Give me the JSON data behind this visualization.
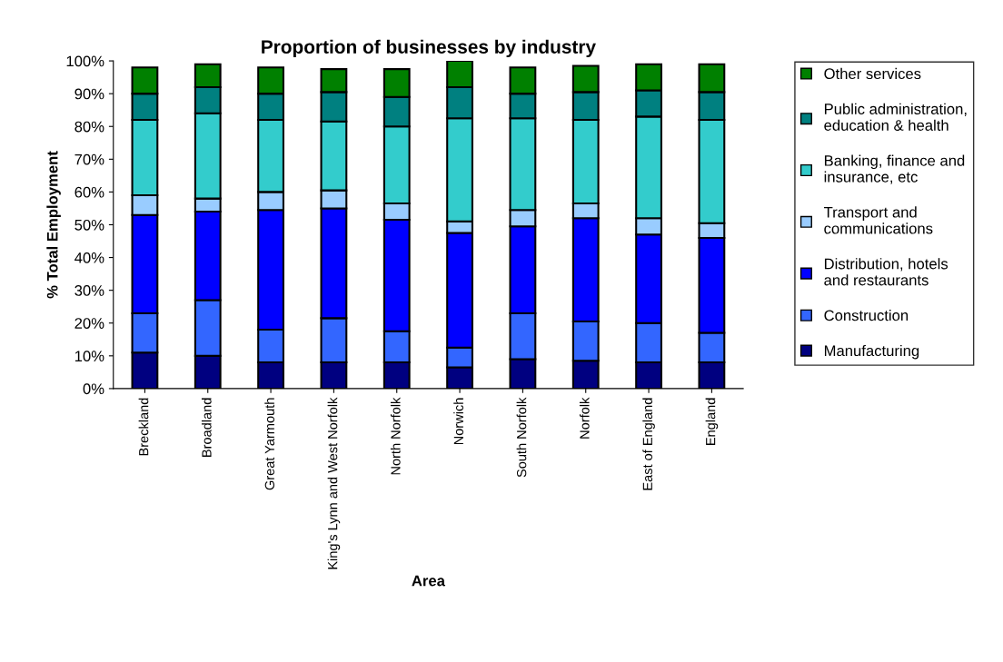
{
  "chart_data": {
    "type": "bar",
    "title": "Proportion of businesses by industry",
    "xlabel": "Area",
    "ylabel": "% Total Employment",
    "categories": [
      "Breckland",
      "Broadland",
      "Great Yarmouth",
      "King's Lynn and West Norfolk",
      "North Norfolk",
      "Norwich",
      "South Norfolk",
      "Norfolk",
      "East of England",
      "England"
    ],
    "stacked": true,
    "ylim": [
      0,
      100
    ],
    "yticks": [
      {
        "value": 0,
        "label": "0%"
      },
      {
        "value": 10,
        "label": "10%"
      },
      {
        "value": 20,
        "label": "20%"
      },
      {
        "value": 30,
        "label": "30%"
      },
      {
        "value": 40,
        "label": "40%"
      },
      {
        "value": 50,
        "label": "50%"
      },
      {
        "value": 60,
        "label": "60%"
      },
      {
        "value": 70,
        "label": "70%"
      },
      {
        "value": 80,
        "label": "80%"
      },
      {
        "value": 90,
        "label": "90%"
      },
      {
        "value": 100,
        "label": "100%"
      }
    ],
    "grid": false,
    "legend": "right",
    "series": [
      {
        "name": "Manufacturing",
        "color": "#000080",
        "values": [
          11,
          10,
          8,
          8,
          8,
          6.5,
          9,
          8.5,
          8,
          8
        ]
      },
      {
        "name": "Construction",
        "color": "#3366ff",
        "values": [
          12,
          17,
          10,
          13.5,
          9.5,
          6,
          14,
          12,
          12,
          9
        ]
      },
      {
        "name": "Distribution, hotels and restaurants",
        "color": "#0000ff",
        "values": [
          30,
          27,
          36.5,
          33.5,
          34,
          35,
          26.5,
          31.5,
          27,
          29
        ]
      },
      {
        "name": "Transport and communications",
        "color": "#99ccff",
        "values": [
          6,
          4,
          5.5,
          5.5,
          5,
          3.5,
          5,
          4.5,
          5,
          4.5
        ]
      },
      {
        "name": "Banking, finance and insurance, etc",
        "color": "#33cccc",
        "values": [
          23,
          26,
          22,
          21,
          23.5,
          31.5,
          28,
          25.5,
          31,
          31.5
        ]
      },
      {
        "name": "Public administration, education & health",
        "color": "#008080",
        "values": [
          8,
          8,
          8,
          9,
          9,
          9.5,
          7.5,
          8.5,
          8,
          8.5
        ]
      },
      {
        "name": "Other services",
        "color": "#008000",
        "values": [
          8,
          7,
          8,
          7,
          8.5,
          8,
          8,
          8,
          8,
          8.5
        ]
      }
    ]
  }
}
